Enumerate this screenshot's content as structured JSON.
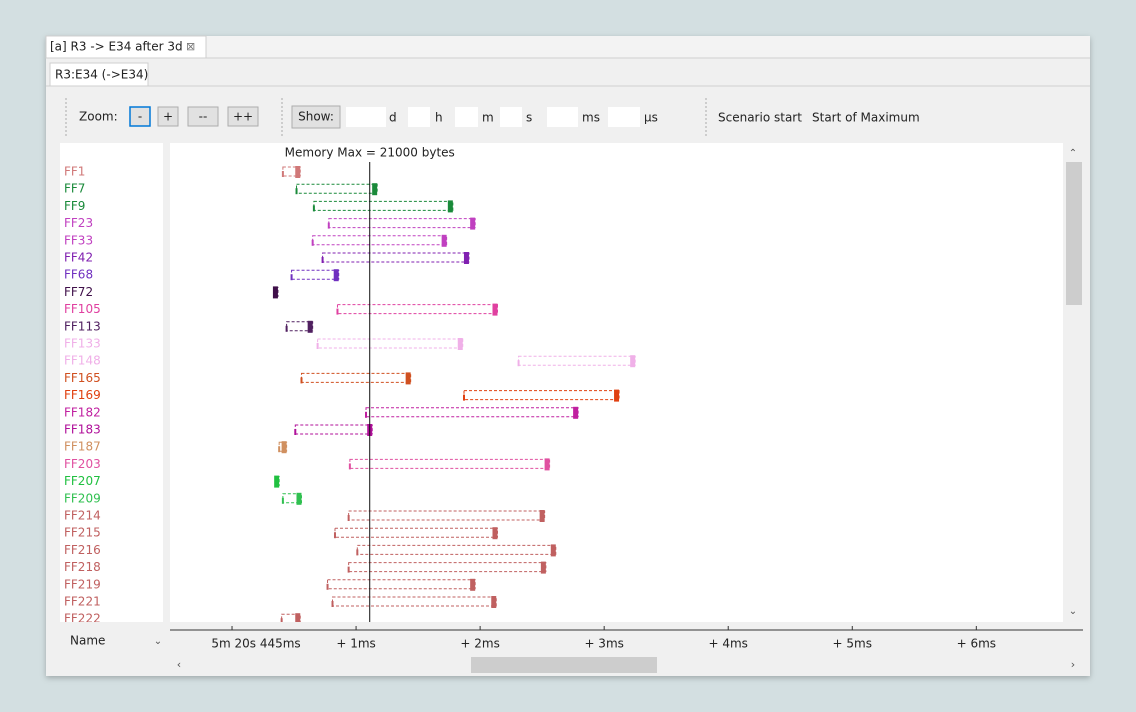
{
  "tabs": {
    "editor": "[a] R3 -> E34 after 3d",
    "view": "R3:E34 (->E34)"
  },
  "toolbar": {
    "zoom_label": "Zoom:",
    "zoom_buttons": [
      "-",
      "+",
      "--",
      "++"
    ],
    "show_button": "Show:",
    "units": [
      "d",
      "h",
      "m",
      "s",
      "ms",
      "µs"
    ],
    "links": [
      "Scenario start",
      "Start of Maximum"
    ]
  },
  "name_column": "Name",
  "timeline": {
    "memory_max": {
      "label": "Memory Max = 21000 bytes",
      "at_ms": 1.11
    },
    "xlim": [
      -0.5,
      6.86
    ],
    "ticks": [
      {
        "value": 0,
        "label": "5m 20s 445ms"
      },
      {
        "value": 1,
        "label": "+ 1ms"
      },
      {
        "value": 2,
        "label": "+ 2ms"
      },
      {
        "value": 3,
        "label": "+ 3ms"
      },
      {
        "value": 4,
        "label": "+ 4ms"
      },
      {
        "value": 5,
        "label": "+ 5ms"
      },
      {
        "value": 6,
        "label": "+ 6ms"
      }
    ],
    "rows": [
      {
        "name": "FF1",
        "color": "#d07878",
        "start_ms": 0.41,
        "end_ms": 0.55
      },
      {
        "name": "FF7",
        "color": "#1a8a3a",
        "start_ms": 0.52,
        "end_ms": 1.17
      },
      {
        "name": "FF9",
        "color": "#1a8a3a",
        "start_ms": 0.66,
        "end_ms": 1.78
      },
      {
        "name": "FF23",
        "color": "#c040c0",
        "start_ms": 0.78,
        "end_ms": 1.96
      },
      {
        "name": "FF33",
        "color": "#c040c0",
        "start_ms": 0.65,
        "end_ms": 1.73
      },
      {
        "name": "FF42",
        "color": "#8020b0",
        "start_ms": 0.73,
        "end_ms": 1.91
      },
      {
        "name": "FF68",
        "color": "#7030c0",
        "start_ms": 0.48,
        "end_ms": 0.86
      },
      {
        "name": "FF72",
        "color": "#40104a",
        "start_ms": 0.35,
        "end_ms": 0.37
      },
      {
        "name": "FF105",
        "color": "#e040a0",
        "start_ms": 0.85,
        "end_ms": 2.14
      },
      {
        "name": "FF113",
        "color": "#502060",
        "start_ms": 0.44,
        "end_ms": 0.65
      },
      {
        "name": "FF133",
        "color": "#f0b0e8",
        "start_ms": 0.69,
        "end_ms": 1.86
      },
      {
        "name": "FF148",
        "color": "#f0b0e8",
        "start_ms": 2.31,
        "end_ms": 3.25
      },
      {
        "name": "FF165",
        "color": "#d05020",
        "start_ms": 0.56,
        "end_ms": 1.44
      },
      {
        "name": "FF169",
        "color": "#e04010",
        "start_ms": 1.87,
        "end_ms": 3.12
      },
      {
        "name": "FF182",
        "color": "#c020a0",
        "start_ms": 1.08,
        "end_ms": 2.79
      },
      {
        "name": "FF183",
        "color": "#b0109a",
        "start_ms": 0.51,
        "end_ms": 1.13
      },
      {
        "name": "FF187",
        "color": "#d09060",
        "start_ms": 0.38,
        "end_ms": 0.44
      },
      {
        "name": "FF203",
        "color": "#e050a0",
        "start_ms": 0.95,
        "end_ms": 2.56
      },
      {
        "name": "FF207",
        "color": "#20c040",
        "start_ms": 0.36,
        "end_ms": 0.38
      },
      {
        "name": "FF209",
        "color": "#30c050",
        "start_ms": 0.41,
        "end_ms": 0.56
      },
      {
        "name": "FF214",
        "color": "#c06060",
        "start_ms": 0.94,
        "end_ms": 2.52
      },
      {
        "name": "FF215",
        "color": "#c06060",
        "start_ms": 0.83,
        "end_ms": 2.14
      },
      {
        "name": "FF216",
        "color": "#c06060",
        "start_ms": 1.01,
        "end_ms": 2.61
      },
      {
        "name": "FF218",
        "color": "#c06060",
        "start_ms": 0.94,
        "end_ms": 2.53
      },
      {
        "name": "FF219",
        "color": "#c06060",
        "start_ms": 0.77,
        "end_ms": 1.96
      },
      {
        "name": "FF221",
        "color": "#c06060",
        "start_ms": 0.81,
        "end_ms": 2.13
      },
      {
        "name": "FF222",
        "color": "#c06060",
        "start_ms": 0.4,
        "end_ms": 0.55
      }
    ]
  }
}
